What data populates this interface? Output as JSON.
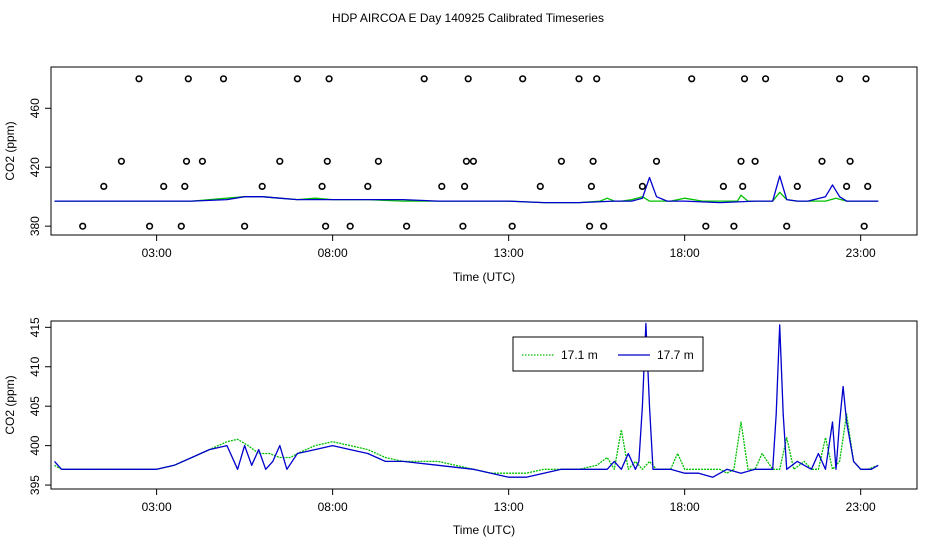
{
  "title": "HDP AIRCOA E  Day 140925  Calibrated Timeseries",
  "colors": {
    "green": "#00c000",
    "blue": "#0000cc",
    "axis": "#000000"
  },
  "chart_data": [
    {
      "type": "line",
      "xlabel": "Time (UTC)",
      "ylabel": "CO2 (ppm)",
      "xlim": [
        0.0,
        24.6
      ],
      "ylim": [
        374,
        488
      ],
      "x_ticks": [
        {
          "value": 3,
          "label": "03:00"
        },
        {
          "value": 8,
          "label": "08:00"
        },
        {
          "value": 13,
          "label": "13:00"
        },
        {
          "value": 18,
          "label": "18:00"
        },
        {
          "value": 23,
          "label": "23:00"
        }
      ],
      "y_ticks": [
        {
          "value": 380,
          "label": "380"
        },
        {
          "value": 420,
          "label": "420"
        },
        {
          "value": 460,
          "label": "460"
        }
      ],
      "series": [
        {
          "color": "#00c000",
          "x": [
            0.1,
            1,
            2,
            3,
            4,
            5,
            5.5,
            6,
            6.5,
            7,
            7.5,
            8,
            9,
            10,
            11,
            12,
            13,
            14,
            15,
            15.6,
            15.8,
            16,
            16.2,
            16.5,
            16.8,
            17.0,
            17.3,
            17.6,
            18,
            18.5,
            19,
            19.5,
            19.6,
            19.8,
            20,
            20.5,
            20.7,
            20.9,
            21.2,
            21.5,
            22,
            22.3,
            22.6,
            23,
            23.5
          ],
          "values": [
            397,
            397,
            397,
            397,
            397,
            399,
            400,
            400,
            399,
            398,
            399,
            398,
            398,
            397,
            397,
            397,
            397,
            396,
            396,
            397,
            399,
            397,
            397,
            398,
            400,
            397,
            397,
            397,
            399,
            397,
            397,
            397,
            401,
            397,
            397,
            397,
            403,
            398,
            397,
            397,
            397,
            399,
            397,
            397,
            397
          ]
        },
        {
          "color": "#0000cc",
          "x": [
            0.1,
            1,
            2,
            3,
            4,
            5,
            5.5,
            6,
            6.5,
            7,
            7.5,
            8,
            9,
            10,
            11,
            12,
            13,
            14,
            15,
            16,
            16.5,
            16.8,
            17.0,
            17.2,
            17.5,
            18,
            19,
            20,
            20.5,
            20.7,
            20.9,
            21.2,
            21.5,
            22,
            22.2,
            22.4,
            22.6,
            23,
            23.5
          ],
          "values": [
            397,
            397,
            397,
            397,
            397,
            398,
            400,
            400,
            399,
            398,
            398,
            398,
            398,
            398,
            397,
            397,
            397,
            396,
            396,
            397,
            397,
            399,
            413,
            400,
            397,
            397,
            396,
            397,
            397,
            414,
            398,
            397,
            397,
            400,
            408,
            400,
            397,
            397,
            397
          ]
        }
      ],
      "markers": {
        "style": "open-circle",
        "x": [
          0.9,
          1.5,
          2,
          2.5,
          2.8,
          3.2,
          3.7,
          3.8,
          3.85,
          3.9,
          4.3,
          4.9,
          5.5,
          6,
          6.5,
          7,
          7.7,
          7.8,
          7.85,
          7.9,
          8.5,
          9.0,
          9.3,
          10.1,
          10.6,
          11.1,
          11.7,
          11.75,
          11.8,
          11.85,
          12,
          13.1,
          13.4,
          13.9,
          14.5,
          15,
          15.3,
          15.35,
          15.4,
          15.5,
          15.7,
          16.8,
          17.2,
          18.2,
          18.6,
          19.1,
          19.4,
          19.6,
          19.65,
          19.7,
          20.0,
          20.3,
          20.9,
          21.2,
          21.9,
          22.4,
          22.6,
          22.7,
          23.1,
          23.15,
          23.2
        ],
        "values": [
          380,
          407,
          424,
          480,
          380,
          407,
          380,
          407,
          424,
          480,
          424,
          480,
          380,
          407,
          424,
          480,
          407,
          380,
          424,
          480,
          380,
          407,
          424,
          380,
          480,
          407,
          380,
          407,
          424,
          480,
          424,
          380,
          480,
          407,
          424,
          480,
          380,
          407,
          424,
          480,
          380,
          407,
          424,
          480,
          380,
          407,
          380,
          424,
          407,
          480,
          424,
          480,
          380,
          407,
          424,
          480,
          407,
          424,
          380,
          480,
          407
        ]
      }
    },
    {
      "type": "line",
      "xlabel": "Time (UTC)",
      "ylabel": "CO2 (ppm)",
      "xlim": [
        0.0,
        24.6
      ],
      "ylim": [
        394.5,
        415.8
      ],
      "x_ticks": [
        {
          "value": 3,
          "label": "03:00"
        },
        {
          "value": 8,
          "label": "08:00"
        },
        {
          "value": 13,
          "label": "13:00"
        },
        {
          "value": 18,
          "label": "18:00"
        },
        {
          "value": 23,
          "label": "23:00"
        }
      ],
      "y_ticks": [
        {
          "value": 395,
          "label": "395"
        },
        {
          "value": 400,
          "label": "400"
        },
        {
          "value": 405,
          "label": "405"
        },
        {
          "value": 410,
          "label": "410"
        },
        {
          "value": 415,
          "label": "415"
        }
      ],
      "legend": {
        "position": "top-right",
        "entries": [
          {
            "label": "17.1 m",
            "color": "#00c000",
            "style": "dotted"
          },
          {
            "label": "17.7 m",
            "color": "#0000cc",
            "style": "solid"
          }
        ]
      },
      "series": [
        {
          "name": "17.1 m",
          "color": "#00c000",
          "x": [
            0.1,
            0.3,
            1,
            2,
            3,
            3.5,
            4,
            4.5,
            5,
            5.3,
            5.6,
            5.9,
            6.2,
            6.5,
            6.8,
            7,
            7.5,
            8,
            8.5,
            9,
            9.5,
            10,
            11,
            12,
            12.5,
            13,
            13.5,
            14,
            14.5,
            15,
            15.5,
            15.8,
            16.0,
            16.2,
            16.4,
            16.6,
            16.8,
            17.0,
            17.2,
            17.4,
            17.6,
            17.8,
            18.0,
            18.2,
            18.5,
            18.8,
            19.0,
            19.2,
            19.4,
            19.6,
            19.8,
            20.0,
            20.2,
            20.5,
            20.7,
            20.9,
            21.1,
            21.4,
            21.6,
            21.8,
            22.0,
            22.2,
            22.4,
            22.6,
            22.8,
            23.0,
            23.2,
            23.5
          ],
          "values": [
            397.5,
            397,
            397,
            397,
            397,
            397.5,
            398.5,
            399.5,
            400.5,
            400.8,
            400,
            399,
            399,
            398.5,
            398.5,
            399,
            400,
            400.5,
            400,
            399.5,
            398.5,
            398,
            398,
            397,
            396.5,
            396.5,
            396.5,
            397,
            397,
            397,
            397.5,
            398.5,
            397,
            402,
            397,
            398,
            397,
            398,
            397,
            397,
            397,
            399,
            397,
            397,
            397,
            397,
            397,
            396.5,
            397,
            403,
            397,
            397,
            399,
            397,
            397,
            401,
            397,
            398,
            397,
            397,
            401,
            397,
            398,
            404,
            398,
            397,
            397,
            397.5
          ]
        },
        {
          "name": "17.7 m",
          "color": "#0000cc",
          "x": [
            0.1,
            0.3,
            1,
            2,
            3,
            3.5,
            4,
            4.5,
            5,
            5.3,
            5.5,
            5.7,
            5.9,
            6.1,
            6.3,
            6.5,
            6.7,
            7,
            7.5,
            8,
            8.5,
            9,
            9.5,
            10,
            11,
            12,
            12.5,
            13,
            13.5,
            14,
            14.5,
            15,
            15.5,
            15.8,
            16.0,
            16.2,
            16.4,
            16.6,
            16.7,
            16.8,
            16.9,
            17.0,
            17.1,
            17.3,
            17.6,
            18.0,
            18.4,
            18.8,
            19.2,
            19.6,
            20.0,
            20.3,
            20.5,
            20.6,
            20.7,
            20.8,
            20.9,
            21.2,
            21.6,
            21.8,
            22.0,
            22.2,
            22.3,
            22.4,
            22.5,
            22.6,
            22.8,
            23.0,
            23.3,
            23.5
          ],
          "values": [
            398,
            397,
            397,
            397,
            397,
            397.5,
            398.5,
            399.5,
            400,
            397,
            400,
            397.5,
            399.5,
            397,
            398,
            400,
            397,
            399,
            399.5,
            400,
            399.5,
            399,
            398,
            398,
            397.5,
            397,
            396.5,
            396,
            396,
            396.5,
            397,
            397,
            397,
            397,
            398,
            397,
            399,
            397,
            398,
            405,
            415.5,
            405,
            397,
            397,
            397,
            396.5,
            396.5,
            396,
            397,
            396.5,
            397,
            397,
            397,
            404,
            415.3,
            404,
            397,
            398,
            397,
            399,
            397,
            403,
            397,
            403,
            407.5,
            403,
            398,
            397,
            397,
            397.5
          ]
        }
      ]
    }
  ]
}
